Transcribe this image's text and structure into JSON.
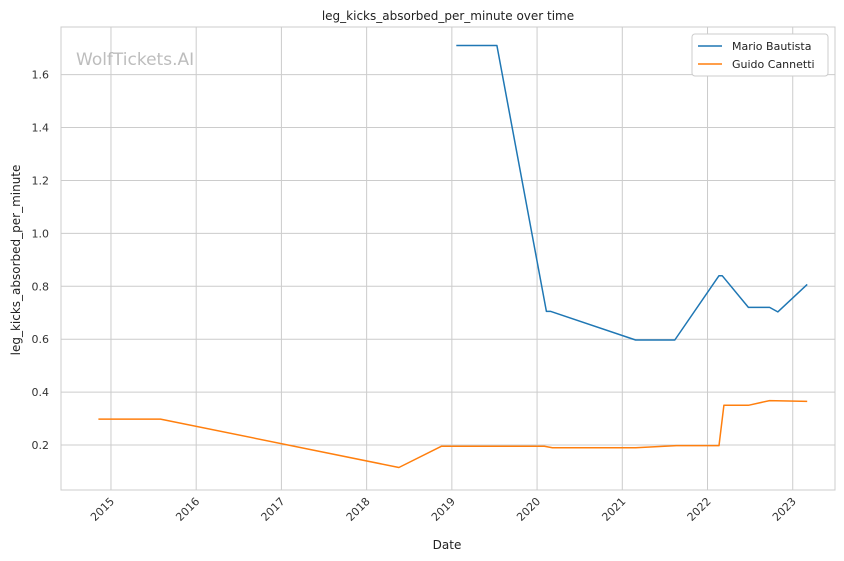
{
  "chart_data": {
    "type": "line",
    "title": "leg_kicks_absorbed_per_minute over time",
    "xlabel": "Date",
    "ylabel": "leg_kicks_absorbed_per_minute",
    "watermark": "WolfTickets.AI",
    "x_range": [
      "2014-06-01",
      "2023-07-01"
    ],
    "ylim": [
      0.03,
      1.78
    ],
    "x_ticks": [
      "2015",
      "2016",
      "2017",
      "2018",
      "2019",
      "2020",
      "2021",
      "2022",
      "2023"
    ],
    "y_ticks": [
      "0.2",
      "0.4",
      "0.6",
      "0.8",
      "1.0",
      "1.2",
      "1.4",
      "1.6"
    ],
    "grid": true,
    "legend_position": "top-right",
    "series": [
      {
        "name": "Mario Bautista",
        "color": "#1f77b4",
        "points": [
          [
            "2019-01-20",
            1.71
          ],
          [
            "2019-07-13",
            1.71
          ],
          [
            "2020-02-10",
            0.705
          ],
          [
            "2020-02-29",
            0.705
          ],
          [
            "2021-02-27",
            0.597
          ],
          [
            "2021-08-14",
            0.597
          ],
          [
            "2022-02-19",
            0.84
          ],
          [
            "2022-03-05",
            0.84
          ],
          [
            "2022-06-25",
            0.72
          ],
          [
            "2022-09-24",
            0.72
          ],
          [
            "2022-10-29",
            0.703
          ],
          [
            "2023-03-04",
            0.807
          ]
        ]
      },
      {
        "name": "Guido Cannetti",
        "color": "#ff7f0e",
        "points": [
          [
            "2014-11-08",
            0.298
          ],
          [
            "2015-08-01",
            0.298
          ],
          [
            "2018-05-19",
            0.115
          ],
          [
            "2018-11-17",
            0.195
          ],
          [
            "2020-02-01",
            0.195
          ],
          [
            "2020-03-07",
            0.19
          ],
          [
            "2021-02-27",
            0.19
          ],
          [
            "2021-08-21",
            0.198
          ],
          [
            "2022-02-19",
            0.198
          ],
          [
            "2022-03-12",
            0.35
          ],
          [
            "2022-06-25",
            0.35
          ],
          [
            "2022-09-24",
            0.368
          ],
          [
            "2023-03-04",
            0.365
          ]
        ]
      }
    ]
  }
}
